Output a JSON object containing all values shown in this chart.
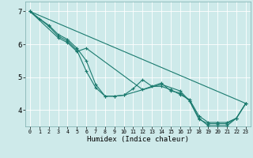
{
  "xlabel": "Humidex (Indice chaleur)",
  "xlim": [
    -0.5,
    23.5
  ],
  "ylim": [
    3.5,
    7.3
  ],
  "bg_color": "#ceeaea",
  "line_color": "#1a7a6e",
  "grid_color": "#ffffff",
  "grid_lw": 0.6,
  "lines": [
    {
      "x": [
        0,
        23
      ],
      "y": [
        7.0,
        4.2
      ],
      "markers": []
    },
    {
      "x": [
        0,
        1,
        2,
        3,
        4,
        5,
        6,
        7,
        8,
        9,
        10,
        11,
        12,
        13,
        14,
        15,
        16,
        17,
        18,
        19,
        20,
        21,
        22,
        23
      ],
      "y": [
        7.0,
        6.78,
        6.58,
        6.3,
        6.15,
        5.88,
        5.5,
        4.78,
        4.42,
        4.42,
        4.45,
        4.65,
        4.92,
        4.72,
        4.72,
        4.62,
        4.47,
        4.32,
        3.82,
        3.62,
        3.62,
        3.62,
        3.75,
        4.2
      ],
      "markers": [
        0,
        1,
        2,
        3,
        4,
        5,
        6,
        7,
        8,
        9,
        10,
        11,
        12,
        13,
        14,
        15,
        16,
        17,
        18,
        19,
        20,
        21,
        22,
        23
      ]
    },
    {
      "x": [
        0,
        2,
        3,
        4,
        5,
        6,
        7,
        8,
        9,
        10,
        14,
        16,
        17,
        18,
        19,
        20,
        21,
        22,
        23
      ],
      "y": [
        7.0,
        6.55,
        6.25,
        6.1,
        5.82,
        5.18,
        4.68,
        4.42,
        4.42,
        4.45,
        4.78,
        4.58,
        4.28,
        3.72,
        3.58,
        3.58,
        3.58,
        3.75,
        4.2
      ],
      "markers": [
        0,
        2,
        3,
        4,
        5,
        6,
        7,
        8,
        9,
        10,
        14,
        16,
        17,
        18,
        19,
        20,
        21,
        22,
        23
      ]
    },
    {
      "x": [
        0,
        3,
        4,
        5,
        6,
        12,
        14,
        15,
        16,
        17,
        18,
        19,
        20,
        21,
        22,
        23
      ],
      "y": [
        7.0,
        6.2,
        6.05,
        5.78,
        5.88,
        4.62,
        4.82,
        4.58,
        4.52,
        4.28,
        3.75,
        3.52,
        3.52,
        3.52,
        3.75,
        4.2
      ],
      "markers": [
        0,
        3,
        4,
        5,
        6,
        12,
        14,
        15,
        16,
        17,
        18,
        19,
        20,
        21,
        22,
        23
      ]
    }
  ],
  "yticks": [
    4,
    5,
    6,
    7
  ],
  "xticks": [
    0,
    1,
    2,
    3,
    4,
    5,
    6,
    7,
    8,
    9,
    10,
    11,
    12,
    13,
    14,
    15,
    16,
    17,
    18,
    19,
    20,
    21,
    22,
    23
  ]
}
